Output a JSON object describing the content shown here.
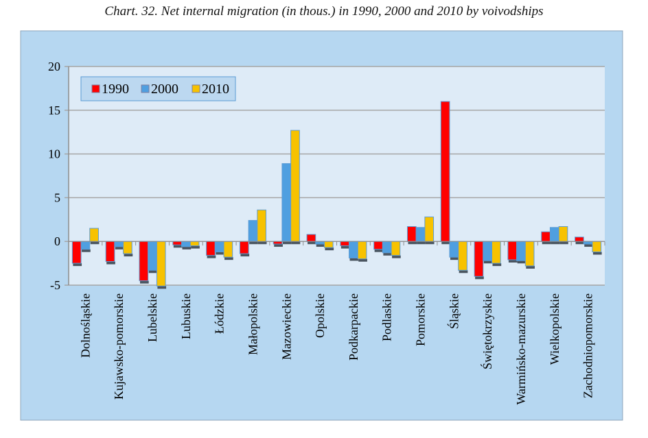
{
  "chart_data": {
    "type": "bar",
    "title": "Chart. 32. Net internal migration (in thous.) in 1990, 2000 and 2010 by voivodships",
    "xlabel": "",
    "ylabel": "",
    "ylim": [
      -5,
      20
    ],
    "yticks": [
      "20",
      "15",
      "10",
      "5",
      "0",
      "-5"
    ],
    "ytick_values": [
      20,
      15,
      10,
      5,
      0,
      -5
    ],
    "grid": true,
    "legend_position": "top-left",
    "categories": [
      "Dolnośląskie",
      "Kujawsko-pomorskie",
      "Lubelskie",
      "Lubuskie",
      "Łódzkie",
      "Małopolskie",
      "Mazowieckie",
      "Opolskie",
      "Podkarpackie",
      "Podlaskie",
      "Pomorskie",
      "Śląskie",
      "Świętokrzyskie",
      "Warmińsko-mazurskie",
      "Wielkopolskie",
      "Zachodniopomorskie"
    ],
    "series": [
      {
        "name": "1990",
        "color": "#ff0000",
        "values": [
          -2.5,
          -2.3,
          -4.5,
          -0.4,
          -1.6,
          -1.4,
          -0.3,
          0.8,
          -0.5,
          -0.9,
          1.7,
          16.0,
          -4.0,
          -2.1,
          1.1,
          0.5
        ]
      },
      {
        "name": "2000",
        "color": "#4f9fe0",
        "values": [
          -0.9,
          -0.6,
          -3.3,
          -0.6,
          -1.2,
          2.4,
          8.9,
          -0.3,
          -1.9,
          -1.3,
          1.6,
          -1.8,
          -2.2,
          -2.2,
          1.6,
          -0.3
        ]
      },
      {
        "name": "2010",
        "color": "#f7c200",
        "values": [
          1.5,
          -1.4,
          -5.1,
          -0.5,
          -1.8,
          3.6,
          12.7,
          -0.7,
          -2.0,
          -1.6,
          2.8,
          -3.3,
          -2.5,
          -2.8,
          1.7,
          -1.2
        ]
      }
    ]
  },
  "colors": {
    "outer_background": "#b6d7f1",
    "plot_background": "#deebf7",
    "gridline": "#a6a6a6",
    "bar_shadow": "#4a5560"
  }
}
